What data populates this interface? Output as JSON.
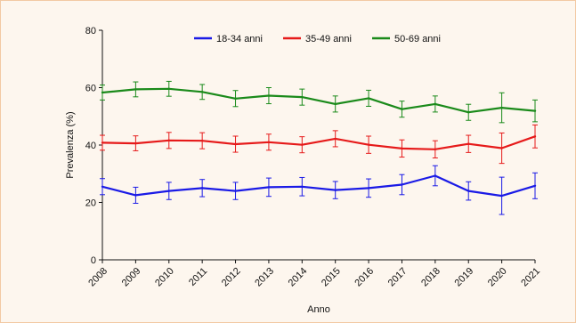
{
  "chart_data": {
    "type": "line",
    "title": "",
    "xlabel": "Anno",
    "ylabel": "Prevalenza (%)",
    "categories": [
      "2008",
      "2009",
      "2010",
      "2011",
      "2012",
      "2013",
      "2014",
      "2015",
      "2016",
      "2017",
      "2018",
      "2019",
      "2020",
      "2021"
    ],
    "ylim": [
      0,
      80
    ],
    "yticks": [
      "0",
      "20",
      "40",
      "60",
      "80"
    ],
    "grid": false,
    "legend_position": "top",
    "series": [
      {
        "name": "18-34 anni",
        "color": "#1a1ae6",
        "values": [
          25.5,
          22.5,
          24.0,
          25.0,
          24.0,
          25.3,
          25.5,
          24.3,
          25.0,
          26.2,
          29.3,
          24.0,
          22.3,
          25.8
        ],
        "err": [
          2.8,
          2.8,
          3.0,
          3.0,
          3.0,
          3.2,
          3.2,
          3.0,
          3.2,
          3.5,
          3.5,
          3.2,
          6.5,
          4.5
        ]
      },
      {
        "name": "35-49 anni",
        "color": "#e61a1a",
        "values": [
          40.8,
          40.6,
          41.6,
          41.5,
          40.3,
          41.0,
          40.1,
          42.2,
          40.1,
          38.8,
          38.5,
          40.4,
          38.9,
          43.0
        ],
        "err": [
          2.6,
          2.6,
          2.8,
          2.8,
          2.8,
          2.8,
          2.8,
          2.8,
          3.0,
          3.0,
          3.0,
          3.0,
          5.3,
          4.0
        ]
      },
      {
        "name": "50-69 anni",
        "color": "#1a8a1a",
        "values": [
          58.3,
          59.4,
          59.6,
          58.5,
          56.2,
          57.2,
          56.7,
          54.3,
          56.3,
          52.5,
          54.3,
          51.4,
          53.0,
          51.9
        ],
        "err": [
          2.6,
          2.6,
          2.6,
          2.6,
          2.8,
          2.8,
          2.8,
          2.8,
          2.8,
          2.8,
          2.8,
          2.8,
          5.2,
          3.8
        ]
      }
    ]
  }
}
